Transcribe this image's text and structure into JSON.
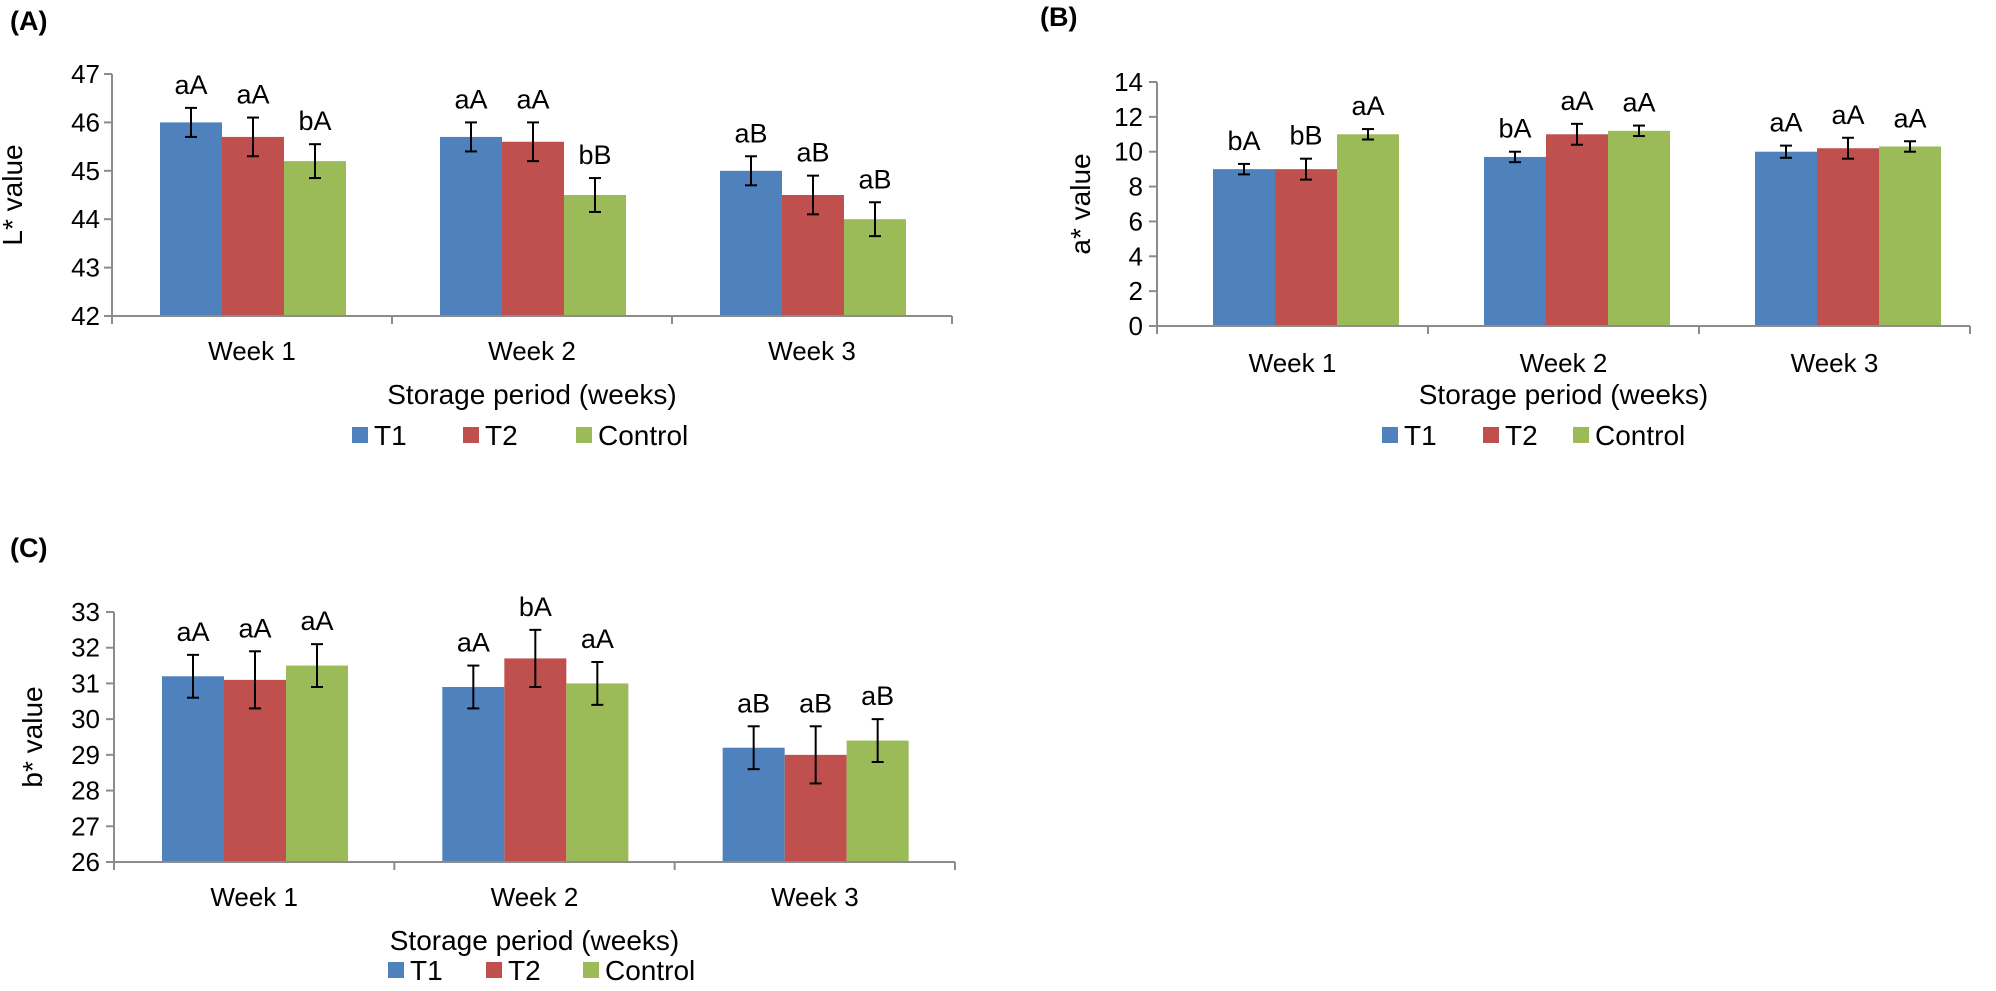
{
  "series_colors": [
    "#4f81bd",
    "#c0504d",
    "#9bbb59"
  ],
  "chart_data": [
    {
      "type": "bar",
      "panel_label": "(A)",
      "categories": [
        "Week 1",
        "Week 2",
        "Week 3"
      ],
      "series": [
        {
          "name": "T1",
          "values": [
            46.0,
            45.7,
            45.0
          ],
          "errors": [
            0.3,
            0.3,
            0.3
          ],
          "labels": [
            "aA",
            "aA",
            "aB"
          ]
        },
        {
          "name": "T2",
          "values": [
            45.7,
            45.6,
            44.5
          ],
          "errors": [
            0.4,
            0.4,
            0.4
          ],
          "labels": [
            "aA",
            "aA",
            "aB"
          ]
        },
        {
          "name": "Control",
          "values": [
            45.2,
            44.5,
            44.0
          ],
          "errors": [
            0.35,
            0.35,
            0.35
          ],
          "labels": [
            "bA",
            "bB",
            "aB"
          ]
        }
      ],
      "ylim": [
        42,
        47
      ],
      "yticks": [
        42,
        43,
        44,
        45,
        46,
        47
      ],
      "xlabel": "Storage period (weeks)",
      "ylabel": "L* value",
      "legend": [
        "T1",
        "T2",
        "Control"
      ],
      "legend_position": "bottom"
    },
    {
      "type": "bar",
      "panel_label": "(B)",
      "categories": [
        "Week 1",
        "Week 2",
        "Week 3"
      ],
      "series": [
        {
          "name": "T1",
          "values": [
            9.0,
            9.7,
            10.0
          ],
          "errors": [
            0.3,
            0.3,
            0.35
          ],
          "labels": [
            "bA",
            "bA",
            "aA"
          ]
        },
        {
          "name": "T2",
          "values": [
            9.0,
            11.0,
            10.2
          ],
          "errors": [
            0.6,
            0.6,
            0.6
          ],
          "labels": [
            "bB",
            "aA",
            "aA"
          ]
        },
        {
          "name": "Control",
          "values": [
            11.0,
            11.2,
            10.3
          ],
          "errors": [
            0.3,
            0.3,
            0.3
          ],
          "labels": [
            "aA",
            "aA",
            "aA"
          ]
        }
      ],
      "ylim": [
        0,
        14
      ],
      "yticks": [
        0,
        2,
        4,
        6,
        8,
        10,
        12,
        14
      ],
      "xlabel": "Storage period (weeks)",
      "ylabel": "a* value",
      "legend": [
        "T1",
        "T2",
        "Control"
      ],
      "legend_position": "bottom"
    },
    {
      "type": "bar",
      "panel_label": "(C)",
      "categories": [
        "Week 1",
        "Week 2",
        "Week 3"
      ],
      "series": [
        {
          "name": "T1",
          "values": [
            31.2,
            30.9,
            29.2
          ],
          "errors": [
            0.6,
            0.6,
            0.6
          ],
          "labels": [
            "aA",
            "aA",
            "aB"
          ]
        },
        {
          "name": "T2",
          "values": [
            31.1,
            31.7,
            29.0
          ],
          "errors": [
            0.8,
            0.8,
            0.8
          ],
          "labels": [
            "aA",
            "bA",
            "aB"
          ]
        },
        {
          "name": "Control",
          "values": [
            31.5,
            31.0,
            29.4
          ],
          "errors": [
            0.6,
            0.6,
            0.6
          ],
          "labels": [
            "aA",
            "aA",
            "aB"
          ]
        }
      ],
      "ylim": [
        26,
        33
      ],
      "yticks": [
        26,
        27,
        28,
        29,
        30,
        31,
        32,
        33
      ],
      "xlabel": "Storage period (weeks)",
      "ylabel": "b* value",
      "legend": [
        "T1",
        "T2",
        "Control"
      ],
      "legend_position": "bottom"
    }
  ]
}
